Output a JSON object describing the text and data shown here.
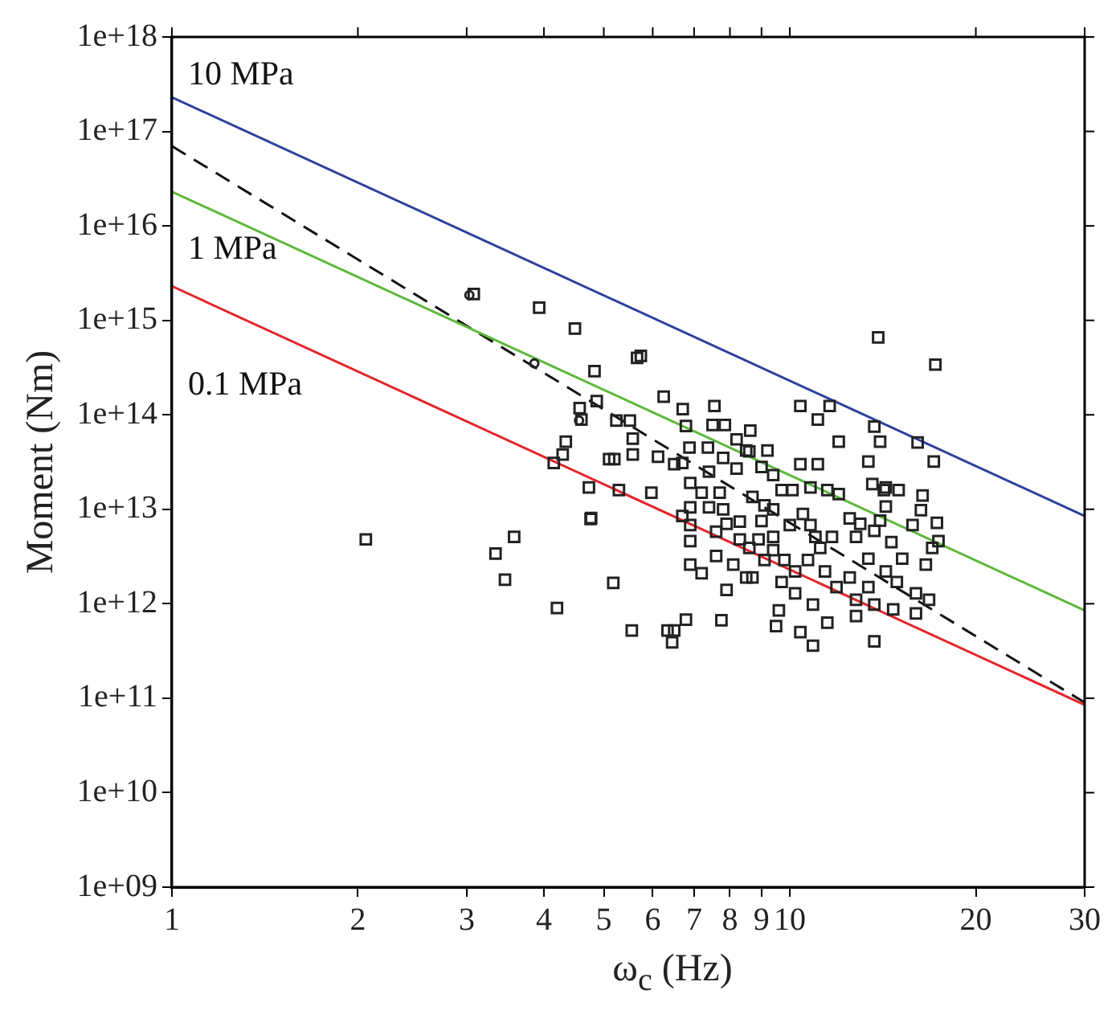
{
  "chart_data": {
    "type": "scatter",
    "xlabel": "ω$_{c}$ (Hz)",
    "ylabel": "Moment (Nm)",
    "log": "xy",
    "grid": false,
    "legend": false,
    "xlim": [
      1,
      30
    ],
    "xticks": [
      1,
      2,
      3,
      4,
      5,
      6,
      7,
      8,
      9,
      10,
      20,
      30
    ],
    "ylim": [
      1000000000.0,
      1e+18
    ],
    "yticks": [
      {
        "value": 1000000000.0,
        "label": "1e+09"
      },
      {
        "value": 10000000000.0,
        "label": "1e+10"
      },
      {
        "value": 100000000000.0,
        "label": "1e+11"
      },
      {
        "value": 1000000000000.0,
        "label": "1e+12"
      },
      {
        "value": 10000000000000.0,
        "label": "1e+13"
      },
      {
        "value": 100000000000000.0,
        "label": "1e+14"
      },
      {
        "value": 1000000000000000.0,
        "label": "1e+15"
      },
      {
        "value": 1e+16,
        "label": "1e+16"
      },
      {
        "value": 1e+17,
        "label": "1e+17"
      },
      {
        "value": 1e+18,
        "label": "1e+18"
      }
    ],
    "annotations": [
      "10 MPa",
      "1 MPa",
      "0.1 MPa"
    ],
    "series": [
      {
        "marker": "square",
        "color": "#222222",
        "x": [
          3.08,
          3.93,
          4.49,
          13.9,
          5.66,
          5.74,
          17.2,
          4.83,
          6.25,
          4.87,
          4.57,
          6.71,
          7.55,
          10.4,
          11.6,
          11.1,
          4.6,
          5.24,
          5.51,
          6.79,
          7.5,
          7.85,
          8.63,
          13.7,
          4.34,
          5.57,
          12.0,
          14.0,
          16.1,
          4.29,
          5.57,
          6.12,
          6.88,
          7.37,
          8.2,
          8.5,
          9.2,
          4.15,
          5.1,
          5.2,
          17.1,
          6.5,
          11.1,
          10.4,
          13.4,
          6.9,
          4.73,
          5.29,
          5.97,
          14.2,
          15.0,
          16.4,
          4.76,
          2.06,
          3.58,
          3.34,
          3.46,
          4.2,
          5.18,
          4.77,
          5.55,
          6.34,
          6.5,
          6.45,
          6.79,
          7.75,
          7.9,
          9.5,
          10.4,
          10.9,
          13.7,
          11.5,
          12.8,
          14.7,
          16.0,
          16.8,
          17.4,
          17.3,
          16.3,
          15.8,
          14.3,
          14.0,
          13.0,
          12.0,
          11.5,
          10.8,
          10.1,
          9.7,
          9.1,
          8.7,
          7.7,
          7.2,
          6.9,
          7.4,
          6.7,
          6.9,
          6.9,
          6.9,
          7.2,
          7.6,
          8.1,
          8.5,
          8.7,
          8.3,
          9.0,
          8.3,
          8.9,
          7.6,
          9.4,
          9.8,
          10.2,
          10.7,
          11.2,
          9.7,
          10.2,
          10.9,
          9.6,
          10.0,
          10.5,
          9.4,
          12.5,
          12.8,
          13.7,
          14.6,
          13.4,
          14.3,
          12.5,
          11.9,
          13.4,
          14.9,
          16.0,
          16.6,
          17.0,
          15.2,
          12.8,
          13.7,
          11.4,
          10.8,
          11.7,
          11.0,
          9.4,
          9.1,
          8.6,
          7.9,
          7.8,
          14.3,
          13.6,
          9.4,
          8.6,
          8.2,
          7.8,
          7.4,
          6.7,
          9.0
        ],
        "values": [
          1900000000000000.0,
          1360000000000000.0,
          820000000000000.0,
          660000000000000.0,
          400000000000000.0,
          420000000000000.0,
          340000000000000.0,
          290000000000000.0,
          156000000000000.0,
          140000000000000.0,
          118000000000000.0,
          115000000000000.0,
          124000000000000.0,
          124000000000000.0,
          124000000000000.0,
          89000000000000.0,
          89000000000000.0,
          87000000000000.0,
          87000000000000.0,
          76000000000000.0,
          78000000000000.0,
          78000000000000.0,
          68000000000000.0,
          75000000000000.0,
          52000000000000.0,
          56000000000000.0,
          52000000000000.0,
          52000000000000.0,
          51000000000000.0,
          38000000000000.0,
          38000000000000.0,
          36000000000000.0,
          45000000000000.0,
          45000000000000.0,
          55000000000000.0,
          42000000000000.0,
          42000000000000.0,
          31000000000000.0,
          34000000000000.0,
          34000000000000.0,
          32000000000000.0,
          30000000000000.0,
          30000000000000.0,
          30000000000000.0,
          32000000000000.0,
          19000000000000.0,
          17000000000000.0,
          16000000000000.0,
          15000000000000.0,
          16000000000000.0,
          16000000000000.0,
          14000000000000.0,
          7900000000000.0,
          4800000000000.0,
          5100000000000.0,
          3400000000000.0,
          1800000000000.0,
          900000000000.0,
          1660000000000.0,
          8100000000000.0,
          520000000000.0,
          520000000000.0,
          520000000000.0,
          390000000000.0,
          680000000000.0,
          670000000000.0,
          1400000000000.0,
          580000000000.0,
          500000000000.0,
          360000000000.0,
          400000000000.0,
          630000000000.0,
          740000000000.0,
          870000000000.0,
          790000000000.0,
          1100000000000.0,
          4600000000000.0,
          7200000000000.0,
          9800000000000.0,
          6800000000000.0,
          10700000000000.0,
          7600000000000.0,
          7000000000000.0,
          14500000000000.0,
          16000000000000.0,
          17000000000000.0,
          16000000000000.0,
          16000000000000.0,
          11000000000000.0,
          13500000000000.0,
          15000000000000.0,
          15000000000000.0,
          10500000000000.0,
          10500000000000.0,
          8500000000000.0,
          6800000000000.0,
          4600000000000.0,
          2600000000000.0,
          2100000000000.0,
          3200000000000.0,
          2600000000000.0,
          1900000000000.0,
          1900000000000.0,
          7400000000000.0,
          7500000000000.0,
          4800000000000.0,
          4800000000000.0,
          5800000000000.0,
          3700000000000.0,
          2900000000000.0,
          2200000000000.0,
          2900000000000.0,
          3900000000000.0,
          1700000000000.0,
          1290000000000.0,
          980000000000.0,
          850000000000.0,
          6800000000000.0,
          8900000000000.0,
          10000000000000.0,
          8000000000000.0,
          5100000000000.0,
          5900000000000.0,
          4500000000000.0,
          3000000000000.0,
          2200000000000.0,
          1900000000000.0,
          1500000000000.0,
          1500000000000.0,
          1700000000000.0,
          1290000000000.0,
          2600000000000.0,
          3900000000000.0,
          3000000000000.0,
          1100000000000.0,
          980000000000.0,
          2200000000000.0,
          6800000000000.0,
          5100000000000.0,
          5100000000000.0,
          5100000000000.0,
          2900000000000.0,
          3900000000000.0,
          7000000000000.0,
          10000000000000.0,
          17000000000000.0,
          18500000000000.0,
          23000000000000.0,
          41000000000000.0,
          27000000000000.0,
          35000000000000.0,
          25000000000000.0,
          31000000000000.0,
          28000000000000.0
        ]
      },
      {
        "marker": "circle",
        "color": "#222222",
        "x": [
          3.03,
          3.86,
          4.56
        ],
        "values": [
          1850000000000000.0,
          350000000000000.0,
          87000000000000.0
        ]
      },
      {
        "type": "line",
        "color": "#2e3f9e",
        "line_style": "solid",
        "x": [
          1,
          30
        ],
        "values": [
          2.3e+17,
          8500000000000.0
        ]
      },
      {
        "type": "line",
        "color": "#5cb83a",
        "line_style": "solid",
        "x": [
          1,
          30
        ],
        "values": [
          2.3e+16,
          850000000000.0
        ]
      },
      {
        "type": "line",
        "color": "#e3262b",
        "line_style": "solid",
        "x": [
          1,
          30
        ],
        "values": [
          2300000000000000.0,
          85000000000.0
        ]
      },
      {
        "type": "line",
        "color": "#111111",
        "line_style": "dashed",
        "x": [
          1,
          30
        ],
        "values": [
          7e+16,
          90000000000.0
        ]
      }
    ]
  }
}
